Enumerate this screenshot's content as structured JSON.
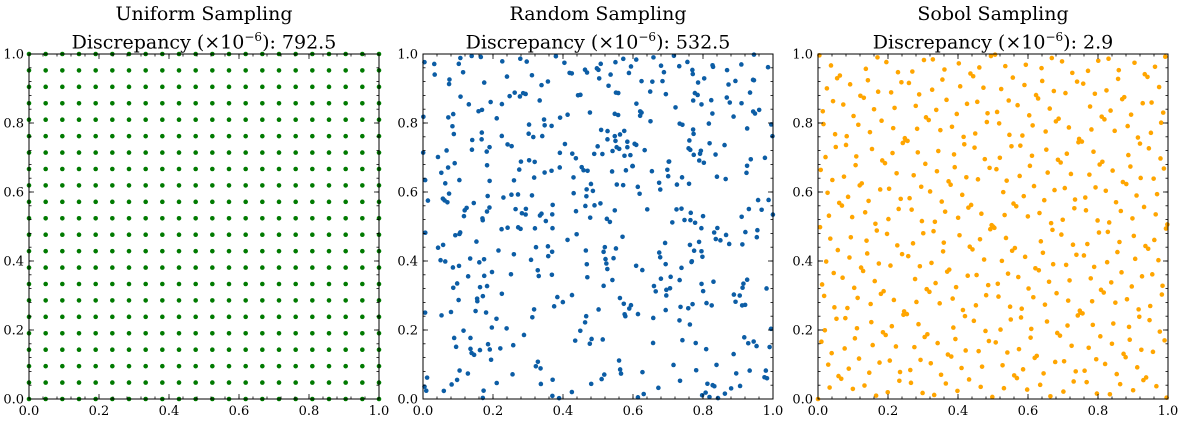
{
  "chart_data": [
    {
      "type": "scatter",
      "title": "Uniform Sampling",
      "subtitle_prefix": "Discrepancy (×10",
      "subtitle_exp": "−6",
      "subtitle_suffix": "): 792.5",
      "discrepancy": 792.5,
      "marker_color": "#007a00",
      "xlim": [
        0,
        1
      ],
      "ylim": [
        0,
        1
      ],
      "xticks": [
        "0.0",
        "0.2",
        "0.4",
        "0.6",
        "0.8",
        "1.0"
      ],
      "yticks": [
        "0.0",
        "0.2",
        "0.4",
        "0.6",
        "0.8",
        "1.0"
      ],
      "grid": false,
      "generator": "grid",
      "n_per_side": 22,
      "n_points": 484
    },
    {
      "type": "scatter",
      "title": "Random Sampling",
      "subtitle_prefix": "Discrepancy (×10",
      "subtitle_exp": "−6",
      "subtitle_suffix": "): 532.5",
      "discrepancy": 532.5,
      "marker_color": "#0c5da5",
      "xlim": [
        0,
        1
      ],
      "ylim": [
        0,
        1
      ],
      "xticks": [
        "0.0",
        "0.2",
        "0.4",
        "0.6",
        "0.8",
        "1.0"
      ],
      "yticks": [
        "0.0",
        "0.2",
        "0.4",
        "0.6",
        "0.8",
        "1.0"
      ],
      "grid": false,
      "generator": "random",
      "seed": 7,
      "n_points": 484
    },
    {
      "type": "scatter",
      "title": "Sobol Sampling",
      "subtitle_prefix": "Discrepancy (×10",
      "subtitle_exp": "−6",
      "subtitle_suffix": "): 2.9",
      "discrepancy": 2.9,
      "marker_color": "#ffa500",
      "xlim": [
        0,
        1
      ],
      "ylim": [
        0,
        1
      ],
      "xticks": [
        "0.0",
        "0.2",
        "0.4",
        "0.6",
        "0.8",
        "1.0"
      ],
      "yticks": [
        "0.0",
        "0.2",
        "0.4",
        "0.6",
        "0.8",
        "1.0"
      ],
      "grid": false,
      "generator": "sobol",
      "n_points": 484
    }
  ]
}
